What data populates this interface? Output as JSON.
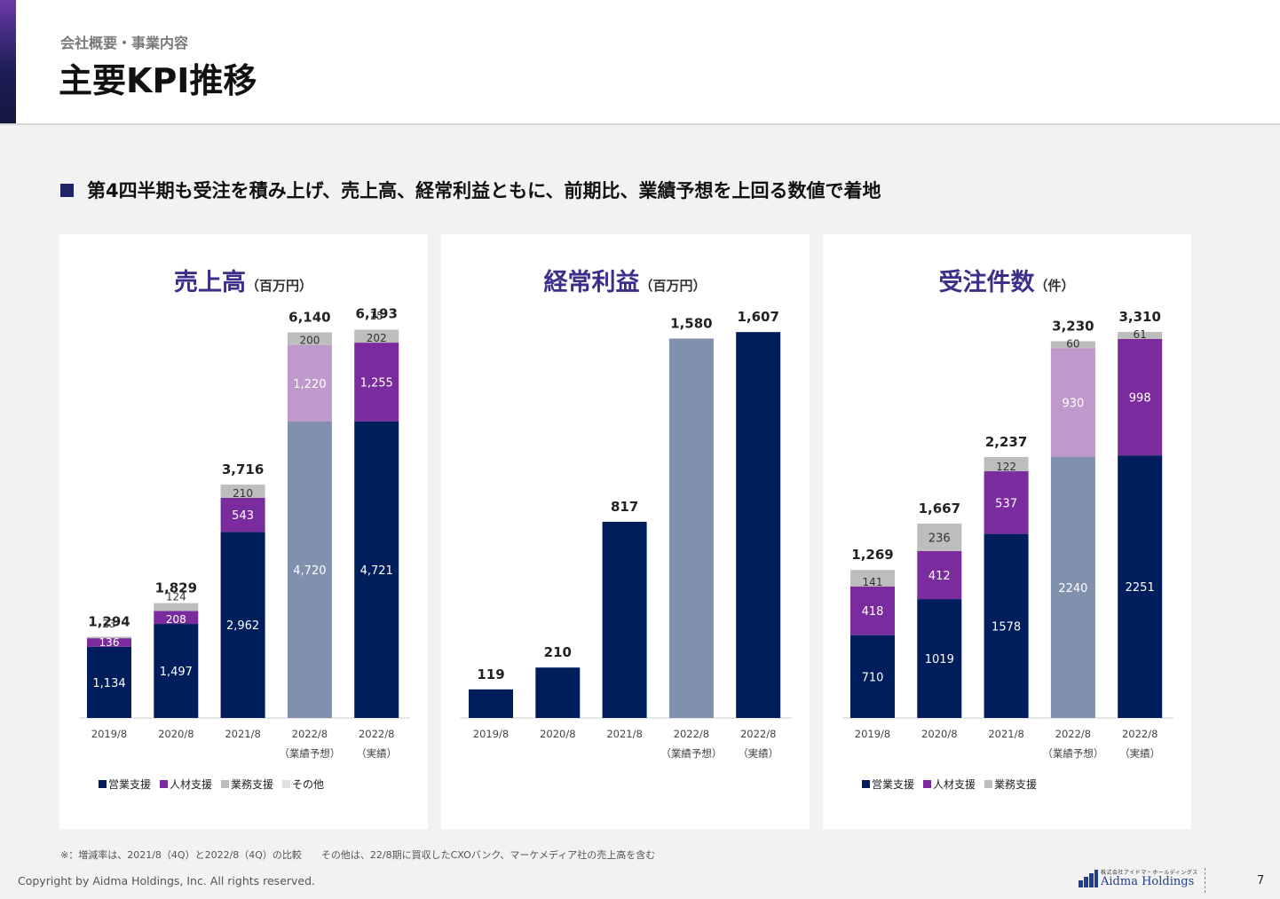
{
  "header": {
    "breadcrumb": "会社概要・事業内容",
    "title": "主要KPI推移"
  },
  "headline": "第4四半期も受注を積み上げ、売上高、経常利益ともに、前期比、業績予想を上回る数値で着地",
  "colors": {
    "sales": "#001e5c",
    "hr": "#7a2b9e",
    "ops": "#bdbdbd",
    "other": "#e0e0e0",
    "forecast_base": "#8090ad",
    "forecast_mid": "#bf98cc",
    "title": "#3b2f8a"
  },
  "chart_data": [
    {
      "type": "bar",
      "stacked": true,
      "title": "売上高",
      "unit": "（百万円）",
      "categories": [
        {
          "line1": "2019/8",
          "line2": ""
        },
        {
          "line1": "2020/8",
          "line2": ""
        },
        {
          "line1": "2021/8",
          "line2": ""
        },
        {
          "line1": "2022/8",
          "line2": "（業績予想）"
        },
        {
          "line1": "2022/8",
          "line2": "（実績）"
        }
      ],
      "series": [
        {
          "name": "営業支援",
          "values": [
            1134,
            1497,
            2962,
            4720,
            4721
          ],
          "labels": [
            "1,134",
            "1,497",
            "2,962",
            "4,720",
            "4,721"
          ]
        },
        {
          "name": "人材支援",
          "values": [
            136,
            208,
            543,
            1220,
            1255
          ],
          "labels": [
            "136",
            "208",
            "543",
            "1,220",
            "1,255"
          ]
        },
        {
          "name": "業務支援",
          "values": [
            23,
            124,
            210,
            200,
            202
          ],
          "labels": [
            "23",
            "124",
            "210",
            "200",
            "202"
          ]
        },
        {
          "name": "その他",
          "values": [
            0,
            0,
            0,
            0,
            15
          ],
          "labels": [
            "",
            "",
            "",
            "",
            "15"
          ]
        }
      ],
      "totals": [
        "1,294",
        "1,829",
        "3,716",
        "6,140",
        "6,193"
      ],
      "forecast_index": 3,
      "ymax": 6500,
      "legend": [
        "営業支援",
        "人材支援",
        "業務支援",
        "その他"
      ]
    },
    {
      "type": "bar",
      "stacked": false,
      "title": "経常利益",
      "unit": "（百万円）",
      "categories": [
        {
          "line1": "2019/8",
          "line2": ""
        },
        {
          "line1": "2020/8",
          "line2": ""
        },
        {
          "line1": "2021/8",
          "line2": ""
        },
        {
          "line1": "2022/8",
          "line2": "（業績予想）"
        },
        {
          "line1": "2022/8",
          "line2": "（実績）"
        }
      ],
      "series": [
        {
          "values": [
            119,
            210,
            817,
            1580,
            1607
          ],
          "labels": [
            "",
            "",
            "",
            "",
            ""
          ]
        }
      ],
      "totals": [
        "119",
        "210",
        "817",
        "1,580",
        "1,607"
      ],
      "forecast_index": 3,
      "ymax": 1700,
      "legend": []
    },
    {
      "type": "bar",
      "stacked": true,
      "title": "受注件数",
      "unit": "（件）",
      "categories": [
        {
          "line1": "2019/8",
          "line2": ""
        },
        {
          "line1": "2020/8",
          "line2": ""
        },
        {
          "line1": "2021/8",
          "line2": ""
        },
        {
          "line1": "2022/8",
          "line2": "（業績予想）"
        },
        {
          "line1": "2022/8",
          "line2": "（実績）"
        }
      ],
      "series": [
        {
          "name": "営業支援",
          "values": [
            710,
            1019,
            1578,
            2240,
            2251
          ],
          "labels": [
            "710",
            "1019",
            "1578",
            "2240",
            "2251"
          ]
        },
        {
          "name": "人材支援",
          "values": [
            418,
            412,
            537,
            930,
            998
          ],
          "labels": [
            "418",
            "412",
            "537",
            "930",
            "998"
          ]
        },
        {
          "name": "業務支援",
          "values": [
            141,
            236,
            122,
            60,
            61
          ],
          "labels": [
            "141",
            "236",
            "122",
            "60",
            "61"
          ]
        }
      ],
      "totals": [
        "1,269",
        "1,667",
        "2,237",
        "3,230",
        "3,310"
      ],
      "forecast_index": 3,
      "ymax": 3500,
      "legend": [
        "営業支援",
        "人材支援",
        "業務支援"
      ]
    }
  ],
  "footer": {
    "note": "※：増減率は、2021/8（4Q）と2022/8（4Q）の比較　　その他は、22/8期に買収したCXOバンク、マーケメディア社の売上高を含む",
    "copyright": "Copyright by Aidma Holdings, Inc. All rights reserved.",
    "logo_small": "株式会社アイドマ・ホールディングス",
    "logo_name": "Aidma Holdings",
    "page_number": "7"
  }
}
